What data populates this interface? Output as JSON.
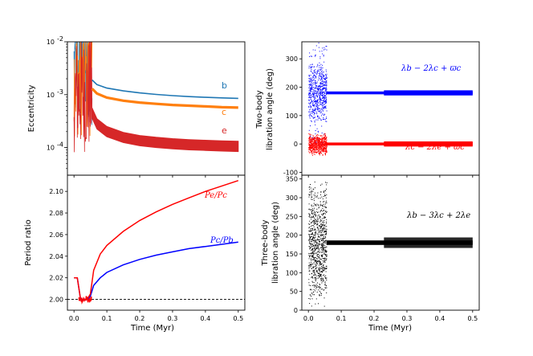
{
  "colors": {
    "b": "#1f77b4",
    "c": "#ff7f0e",
    "e": "#d62728",
    "red": "#ff0000",
    "blue": "#0000ff",
    "black": "#000000"
  },
  "chart_data": [
    {
      "id": "eccentricity",
      "type": "line",
      "ylabel": "Eccentricity",
      "yscale": "log",
      "xlim": [
        -0.02,
        0.52
      ],
      "ylim": [
        3e-05,
        0.01
      ],
      "x_ticks": [],
      "y_ticks": [
        {
          "value": 0.01,
          "label": "10^-2"
        },
        {
          "value": 0.001,
          "label": "10^-3"
        },
        {
          "value": 0.0001,
          "label": "10^-4"
        }
      ],
      "series": [
        {
          "name": "b",
          "label": "b",
          "color_key": "b",
          "x": [
            0.055,
            0.07,
            0.1,
            0.15,
            0.2,
            0.25,
            0.3,
            0.35,
            0.4,
            0.45,
            0.5
          ],
          "y": [
            0.0019,
            0.00155,
            0.00133,
            0.00118,
            0.00108,
            0.00101,
            0.00096,
            0.00092,
            0.00089,
            0.00087,
            0.00085
          ]
        },
        {
          "name": "c",
          "label": "c",
          "color_key": "c",
          "x": [
            0.055,
            0.07,
            0.1,
            0.15,
            0.2,
            0.25,
            0.3,
            0.35,
            0.4,
            0.45,
            0.5
          ],
          "y": [
            0.0013,
            0.00105,
            0.00088,
            0.00077,
            0.00071,
            0.00067,
            0.00064,
            0.00062,
            0.0006,
            0.00058,
            0.00057
          ]
        },
        {
          "name": "e",
          "label": "e",
          "color_key": "e",
          "x": [
            0.055,
            0.07,
            0.1,
            0.15,
            0.2,
            0.25,
            0.3,
            0.35,
            0.4,
            0.45,
            0.5
          ],
          "y": [
            0.00045,
            0.00028,
            0.0002,
            0.000155,
            0.000135,
            0.000125,
            0.000118,
            0.000113,
            0.00011,
            0.000107,
            0.000105
          ]
        }
      ]
    },
    {
      "id": "period-ratio",
      "type": "line",
      "xlabel": "Time (Myr)",
      "ylabel": "Period ratio",
      "xlim": [
        -0.02,
        0.52
      ],
      "ylim": [
        1.99,
        2.115
      ],
      "x_ticks": [
        "0.0",
        "0.1",
        "0.2",
        "0.3",
        "0.4",
        "0.5"
      ],
      "y_ticks": [
        "2.00",
        "2.02",
        "2.04",
        "2.06",
        "2.08",
        "2.10"
      ],
      "reference_line": 2.0,
      "series": [
        {
          "name": "Pe/Pc",
          "label": "Pe/Pc",
          "color_key": "red",
          "x": [
            0.0,
            0.01,
            0.02,
            0.03,
            0.04,
            0.05,
            0.06,
            0.08,
            0.1,
            0.15,
            0.2,
            0.25,
            0.3,
            0.35,
            0.4,
            0.45,
            0.5
          ],
          "y": [
            2.02,
            2.02,
            2.0,
            2.0,
            2.0,
            2.005,
            2.027,
            2.042,
            2.05,
            2.063,
            2.073,
            2.081,
            2.088,
            2.094,
            2.1,
            2.105,
            2.11
          ]
        },
        {
          "name": "Pc/Pb",
          "label": "Pc/Pb",
          "color_key": "blue",
          "x": [
            0.0,
            0.01,
            0.02,
            0.03,
            0.04,
            0.05,
            0.06,
            0.08,
            0.1,
            0.15,
            0.2,
            0.25,
            0.3,
            0.35,
            0.4,
            0.45,
            0.5
          ],
          "y": [
            2.02,
            2.02,
            2.0,
            2.0,
            2.0,
            2.003,
            2.013,
            2.02,
            2.025,
            2.032,
            2.037,
            2.041,
            2.044,
            2.047,
            2.049,
            2.051,
            2.053
          ]
        }
      ]
    },
    {
      "id": "two-body-libration",
      "type": "scatter",
      "ylabel_line1": "Two-body",
      "ylabel_line2": "libration angle (deg)",
      "xlim": [
        -0.02,
        0.52
      ],
      "ylim": [
        -110,
        360
      ],
      "x_ticks": [],
      "y_ticks": [
        "-100",
        "0",
        "100",
        "200",
        "300"
      ],
      "series": [
        {
          "name": "lambda_b - 2 lambda_c + varpi_c",
          "label": "λb − 2λc + ϖc",
          "color_key": "blue",
          "scatter_until": 0.055,
          "center": 180,
          "spread_early": 110,
          "band_after": 180,
          "band_half_width": 5
        },
        {
          "name": "lambda_c - 2 lambda_e + varpi_c",
          "label": "λc − 2λe + ϖc",
          "color_key": "red",
          "scatter_until": 0.055,
          "center": 0,
          "spread_early": 40,
          "band_after": 0,
          "band_half_width": 5
        }
      ]
    },
    {
      "id": "three-body-libration",
      "type": "scatter",
      "xlabel": "Time (Myr)",
      "ylabel_line1": "Three-body",
      "ylabel_line2": "libration angle (deg)",
      "xlim": [
        -0.02,
        0.52
      ],
      "ylim": [
        0,
        360
      ],
      "x_ticks": [
        "0.0",
        "0.1",
        "0.2",
        "0.3",
        "0.4",
        "0.5"
      ],
      "y_ticks": [
        "0",
        "50",
        "100",
        "150",
        "200",
        "250",
        "300",
        "350"
      ],
      "series": [
        {
          "name": "lambda_b - 3 lambda_c + 2 lambda_e",
          "label": "λb − 3λc + 2λe",
          "color_key": "black",
          "scatter_until": 0.055,
          "center": 180,
          "spread_early": 175,
          "band_after": 180,
          "band_half_width": 6
        }
      ]
    }
  ]
}
